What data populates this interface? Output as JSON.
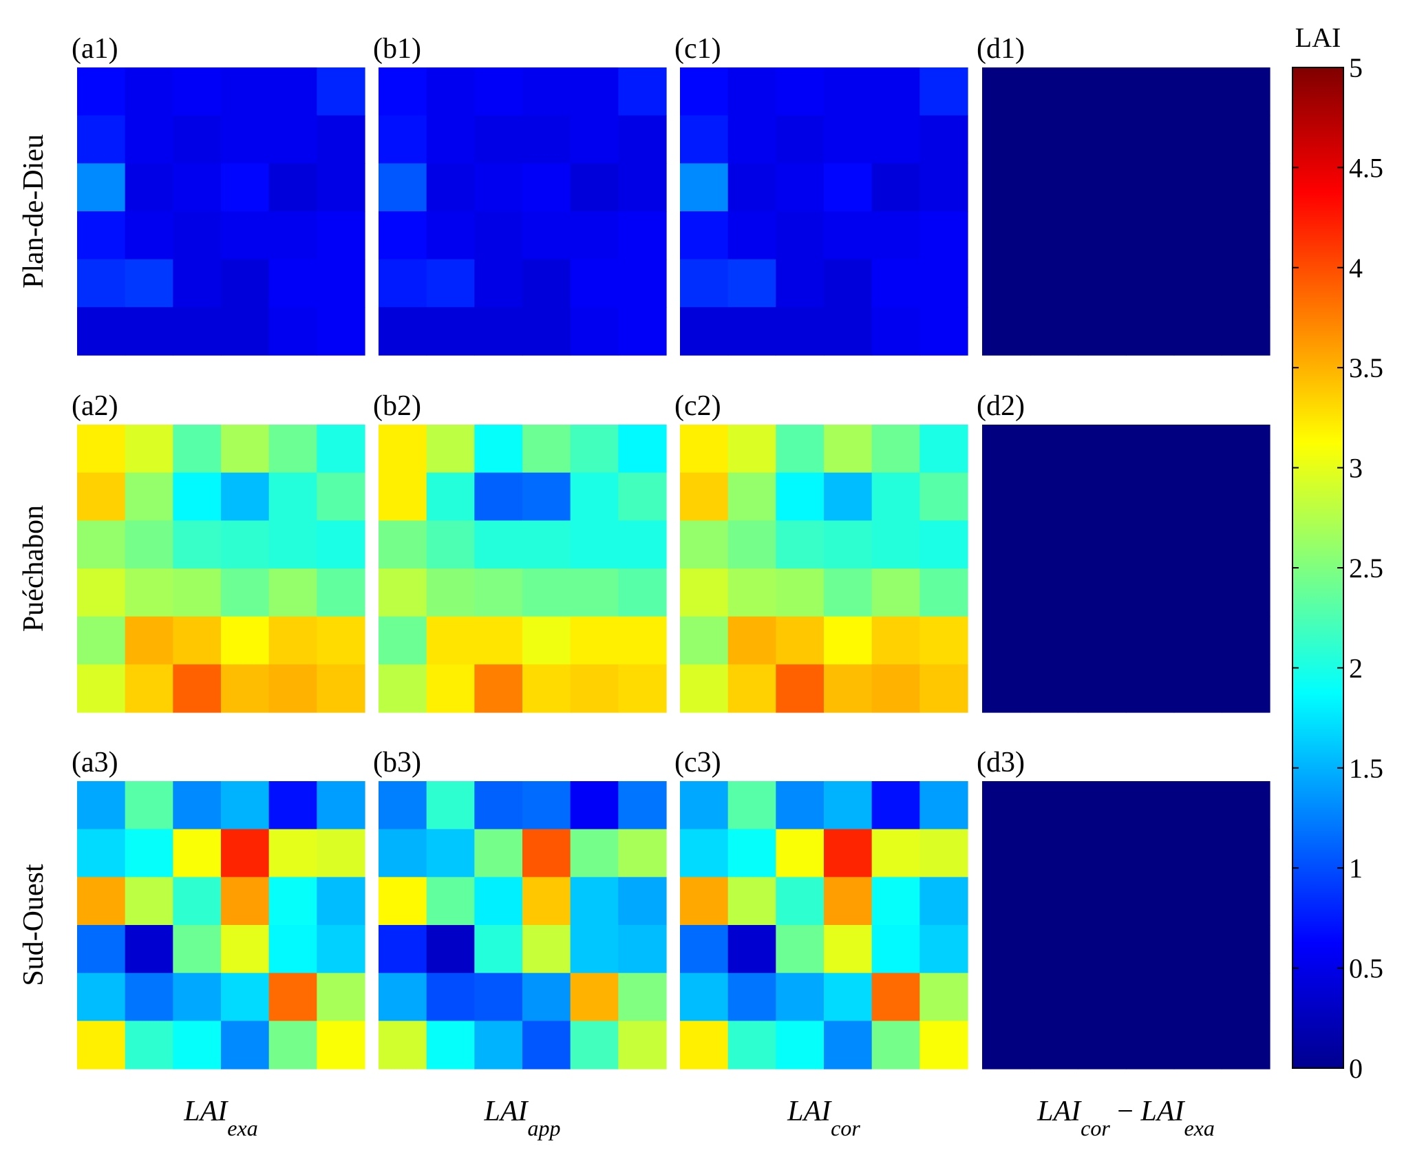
{
  "chart_data": {
    "type": "heatmap",
    "colormap": "jet",
    "colorbar": {
      "title": "LAI",
      "min": 0,
      "max": 5,
      "ticks": [
        "0",
        "0.5",
        "1",
        "1.5",
        "2",
        "2.5",
        "3",
        "3.5",
        "4",
        "4.5",
        "5"
      ]
    },
    "row_labels": [
      "Plan-de-Dieu",
      "Puéchabon",
      "Sud-Ouest"
    ],
    "columns": [
      {
        "base": "LAI",
        "sub": "exa"
      },
      {
        "base": "LAI",
        "sub": "app"
      },
      {
        "base": "LAI",
        "sub": "cor"
      },
      {
        "base": "LAI",
        "sub": "cor",
        "op": "−",
        "base2": "LAI",
        "sub2": "exa"
      }
    ],
    "panels": [
      [
        {
          "label": "(a1)",
          "values": [
            [
              0.65,
              0.55,
              0.6,
              0.55,
              0.55,
              0.8
            ],
            [
              0.75,
              0.55,
              0.5,
              0.55,
              0.55,
              0.5
            ],
            [
              1.3,
              0.5,
              0.55,
              0.65,
              0.45,
              0.5
            ],
            [
              0.7,
              0.55,
              0.5,
              0.55,
              0.55,
              0.6
            ],
            [
              0.85,
              0.9,
              0.5,
              0.45,
              0.6,
              0.6
            ],
            [
              0.45,
              0.45,
              0.45,
              0.45,
              0.55,
              0.6
            ]
          ]
        },
        {
          "label": "(b1)",
          "values": [
            [
              0.65,
              0.55,
              0.6,
              0.55,
              0.55,
              0.75
            ],
            [
              0.7,
              0.55,
              0.5,
              0.5,
              0.55,
              0.5
            ],
            [
              1.05,
              0.5,
              0.55,
              0.6,
              0.45,
              0.5
            ],
            [
              0.65,
              0.55,
              0.5,
              0.55,
              0.55,
              0.6
            ],
            [
              0.75,
              0.8,
              0.5,
              0.45,
              0.6,
              0.6
            ],
            [
              0.45,
              0.45,
              0.45,
              0.45,
              0.55,
              0.6
            ]
          ]
        },
        {
          "label": "(c1)",
          "values": [
            [
              0.65,
              0.55,
              0.6,
              0.55,
              0.55,
              0.8
            ],
            [
              0.75,
              0.55,
              0.5,
              0.55,
              0.55,
              0.5
            ],
            [
              1.3,
              0.5,
              0.55,
              0.65,
              0.45,
              0.5
            ],
            [
              0.7,
              0.55,
              0.5,
              0.55,
              0.55,
              0.6
            ],
            [
              0.85,
              0.9,
              0.5,
              0.45,
              0.6,
              0.6
            ],
            [
              0.45,
              0.45,
              0.45,
              0.45,
              0.55,
              0.6
            ]
          ]
        },
        {
          "label": "(d1)",
          "values": [
            [
              0,
              0,
              0,
              0,
              0,
              0
            ],
            [
              0,
              0,
              0,
              0,
              0,
              0
            ],
            [
              0,
              0,
              0,
              0,
              0,
              0
            ],
            [
              0,
              0,
              0,
              0,
              0,
              0
            ],
            [
              0,
              0,
              0,
              0,
              0,
              0
            ],
            [
              0,
              0,
              0,
              0,
              0,
              0
            ]
          ]
        }
      ],
      [
        {
          "label": "(a2)",
          "values": [
            [
              3.2,
              2.95,
              2.3,
              2.7,
              2.4,
              2.0
            ],
            [
              3.35,
              2.6,
              1.85,
              1.55,
              2.05,
              2.3
            ],
            [
              2.6,
              2.45,
              2.15,
              2.1,
              2.05,
              2.0
            ],
            [
              2.9,
              2.7,
              2.65,
              2.4,
              2.6,
              2.35
            ],
            [
              2.6,
              3.5,
              3.4,
              3.15,
              3.35,
              3.3
            ],
            [
              2.95,
              3.35,
              3.9,
              3.45,
              3.5,
              3.4
            ]
          ]
        },
        {
          "label": "(b2)",
          "values": [
            [
              3.2,
              2.8,
              1.9,
              2.4,
              2.2,
              1.85
            ],
            [
              3.2,
              2.05,
              1.1,
              1.15,
              2.0,
              2.2
            ],
            [
              2.45,
              2.25,
              2.05,
              2.05,
              2.0,
              2.0
            ],
            [
              2.8,
              2.55,
              2.5,
              2.4,
              2.4,
              2.3
            ],
            [
              2.4,
              3.25,
              3.25,
              3.05,
              3.2,
              3.2
            ],
            [
              2.8,
              3.2,
              3.75,
              3.3,
              3.35,
              3.3
            ]
          ]
        },
        {
          "label": "(c2)",
          "values": [
            [
              3.2,
              2.95,
              2.3,
              2.7,
              2.4,
              2.0
            ],
            [
              3.35,
              2.6,
              1.85,
              1.55,
              2.05,
              2.3
            ],
            [
              2.6,
              2.45,
              2.15,
              2.1,
              2.05,
              2.0
            ],
            [
              2.9,
              2.7,
              2.65,
              2.4,
              2.6,
              2.35
            ],
            [
              2.6,
              3.5,
              3.4,
              3.15,
              3.35,
              3.3
            ],
            [
              2.95,
              3.35,
              3.9,
              3.45,
              3.5,
              3.4
            ]
          ]
        },
        {
          "label": "(d2)",
          "values": [
            [
              0,
              0,
              0,
              0,
              0,
              0
            ],
            [
              0,
              0,
              0,
              0,
              0,
              0
            ],
            [
              0,
              0,
              0,
              0,
              0,
              0
            ],
            [
              0,
              0,
              0,
              0,
              0,
              0
            ],
            [
              0,
              0,
              0,
              0,
              0,
              0
            ],
            [
              0,
              0,
              0,
              0,
              0,
              0
            ]
          ]
        }
      ],
      [
        {
          "label": "(a3)",
          "values": [
            [
              1.45,
              2.3,
              1.3,
              1.5,
              0.7,
              1.4
            ],
            [
              1.7,
              1.9,
              3.1,
              4.2,
              3.0,
              2.95
            ],
            [
              3.55,
              2.8,
              2.1,
              3.6,
              1.9,
              1.55
            ],
            [
              1.15,
              0.4,
              2.4,
              3.0,
              1.85,
              1.65
            ],
            [
              1.55,
              1.2,
              1.45,
              1.7,
              3.85,
              2.7
            ],
            [
              3.2,
              2.1,
              1.9,
              1.3,
              2.45,
              3.1
            ]
          ]
        },
        {
          "label": "(b3)",
          "values": [
            [
              1.25,
              2.1,
              1.1,
              1.15,
              0.6,
              1.2
            ],
            [
              1.5,
              1.6,
              2.45,
              3.95,
              2.45,
              2.7
            ],
            [
              3.15,
              2.35,
              1.8,
              3.4,
              1.6,
              1.45
            ],
            [
              0.8,
              0.35,
              2.05,
              2.85,
              1.6,
              1.55
            ],
            [
              1.45,
              1.0,
              1.05,
              1.35,
              3.5,
              2.5
            ],
            [
              2.9,
              1.9,
              1.5,
              1.05,
              2.2,
              2.85
            ]
          ]
        },
        {
          "label": "(c3)",
          "values": [
            [
              1.45,
              2.3,
              1.3,
              1.5,
              0.7,
              1.4
            ],
            [
              1.7,
              1.9,
              3.1,
              4.2,
              3.0,
              2.95
            ],
            [
              3.55,
              2.8,
              2.1,
              3.6,
              1.9,
              1.55
            ],
            [
              1.15,
              0.4,
              2.4,
              3.0,
              1.85,
              1.65
            ],
            [
              1.55,
              1.2,
              1.45,
              1.7,
              3.85,
              2.7
            ],
            [
              3.2,
              2.1,
              1.9,
              1.3,
              2.45,
              3.1
            ]
          ]
        },
        {
          "label": "(d3)",
          "values": [
            [
              0,
              0,
              0,
              0,
              0,
              0
            ],
            [
              0,
              0,
              0,
              0,
              0,
              0
            ],
            [
              0,
              0,
              0,
              0,
              0,
              0
            ],
            [
              0,
              0,
              0,
              0,
              0,
              0
            ],
            [
              0,
              0,
              0,
              0,
              0,
              0
            ],
            [
              0,
              0,
              0,
              0,
              0,
              0
            ]
          ]
        }
      ]
    ]
  }
}
